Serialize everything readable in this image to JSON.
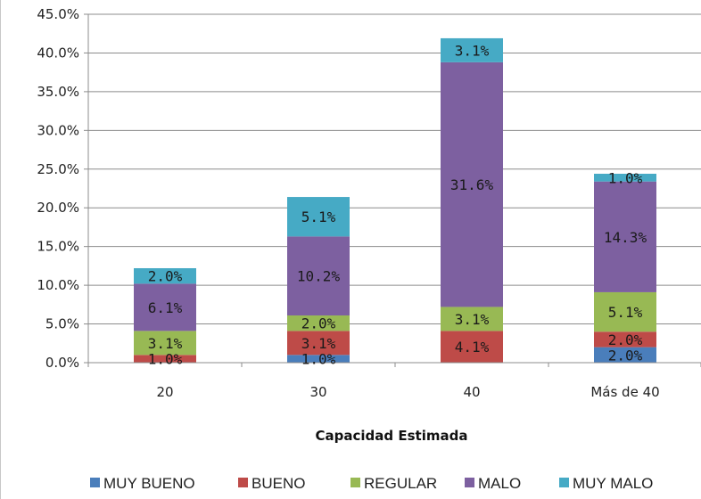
{
  "chart_data": {
    "type": "bar",
    "stacked": true,
    "categories": [
      "20",
      "30",
      "40",
      "Más de 40"
    ],
    "series": [
      {
        "name": "MUY BUENO",
        "color": "#4a7ebb",
        "values": [
          0.0,
          1.0,
          0.0,
          2.0
        ],
        "labels": [
          "",
          "1.0%",
          "",
          "2.0%"
        ]
      },
      {
        "name": "BUENO",
        "color": "#be4b48",
        "values": [
          1.0,
          3.1,
          4.1,
          2.0
        ],
        "labels": [
          "1.0%",
          "3.1%",
          "4.1%",
          "2.0%"
        ]
      },
      {
        "name": "REGULAR",
        "color": "#98b954",
        "values": [
          3.1,
          2.0,
          3.1,
          5.1
        ],
        "labels": [
          "3.1%",
          "2.0%",
          "3.1%",
          "5.1%"
        ]
      },
      {
        "name": "MALO",
        "color": "#7d60a0",
        "values": [
          6.1,
          10.2,
          31.6,
          14.3
        ],
        "labels": [
          "6.1%",
          "10.2%",
          "31.6%",
          "14.3%"
        ]
      },
      {
        "name": "MUY MALO",
        "color": "#46aac5",
        "values": [
          2.0,
          5.1,
          3.1,
          1.0
        ],
        "labels": [
          "2.0%",
          "5.1%",
          "3.1%",
          "1.0%"
        ]
      }
    ],
    "title": "",
    "xlabel": "Capacidad Estimada",
    "ylabel": "",
    "ylim": [
      0,
      45
    ],
    "ytick_labels": [
      "0.0%",
      "5.0%",
      "10.0%",
      "15.0%",
      "20.0%",
      "25.0%",
      "30.0%",
      "35.0%",
      "40.0%",
      "45.0%"
    ],
    "grid": true,
    "legend_position": "bottom"
  }
}
